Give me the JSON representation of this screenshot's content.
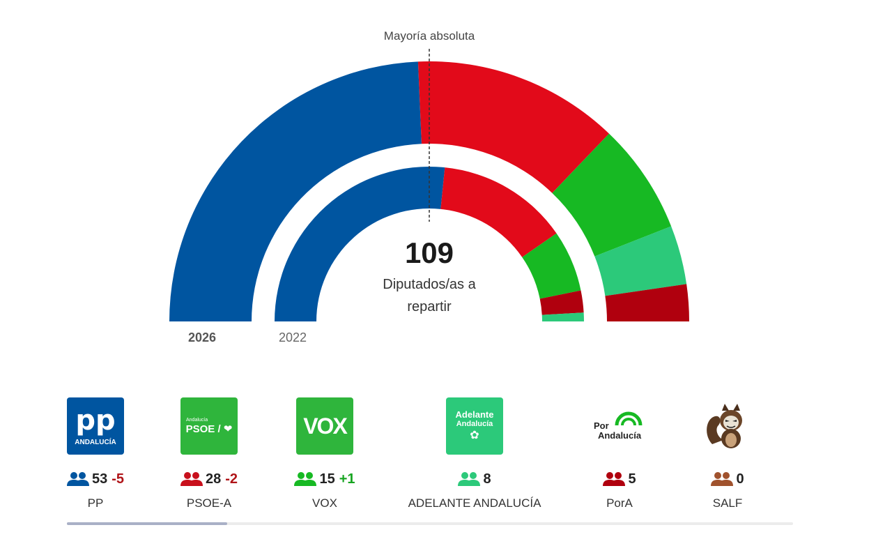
{
  "chart_data": {
    "type": "hemicycle",
    "title": "",
    "total_seats": 109,
    "total_seats_label": "109",
    "total_caption": "Diputados/as a repartir",
    "majority_label": "Mayoría absoluta",
    "majority_seats": 55,
    "rings": [
      {
        "year": "2026",
        "seats": [
          {
            "party": "PP",
            "value": 53,
            "color": "#0055a0"
          },
          {
            "party": "PSOE-A",
            "value": 28,
            "color": "#e20a1a"
          },
          {
            "party": "VOX",
            "value": 15,
            "color": "#17b923"
          },
          {
            "party": "ADELANTE ANDALUCÍA",
            "value": 8,
            "color": "#2cc97a"
          },
          {
            "party": "PorA",
            "value": 5,
            "color": "#b0000e"
          }
        ]
      },
      {
        "year": "2022",
        "seats": [
          {
            "party": "PP",
            "value": 58,
            "color": "#0055a0"
          },
          {
            "party": "PSOE-A",
            "value": 30,
            "color": "#e20a1a"
          },
          {
            "party": "VOX",
            "value": 14,
            "color": "#17b923"
          },
          {
            "party": "PorA",
            "value": 5,
            "color": "#b0000e"
          },
          {
            "party": "ADELANTE ANDALUCÍA",
            "value": 2,
            "color": "#2cc97a"
          }
        ]
      }
    ]
  },
  "parties": [
    {
      "name": "PP",
      "seats": "53",
      "diff": "-5",
      "diff_color": "#b01418",
      "icon_color": "#0055a0",
      "logo_text": "pp",
      "logo_sub": "ANDALUCÍA",
      "logo_bg": "#0055a0"
    },
    {
      "name": "PSOE-A",
      "seats": "28",
      "diff": "-2",
      "diff_color": "#b01418",
      "icon_color": "#c8101c",
      "logo_text": "PSOE / ❤",
      "logo_sub": "Andalucía",
      "logo_bg": "#2fb53c"
    },
    {
      "name": "VOX",
      "seats": "15",
      "diff": "+1",
      "diff_color": "#17a521",
      "icon_color": "#17b923",
      "logo_text": "VOX",
      "logo_sub": "",
      "logo_bg": "#2fb53c"
    },
    {
      "name": "ADELANTE ANDALUCÍA",
      "seats": "8",
      "diff": "",
      "diff_color": "#17a521",
      "icon_color": "#2cc97a",
      "logo_text": "Adelante",
      "logo_sub": "Andalucía",
      "logo_bg": "#2cc97a"
    },
    {
      "name": "PorA",
      "seats": "5",
      "diff": "",
      "diff_color": "#17a521",
      "icon_color": "#b0000e",
      "logo_text": "Por",
      "logo_sub": "Andalucía",
      "logo_bg": "#ffffff"
    },
    {
      "name": "SALF",
      "seats": "0",
      "diff": "",
      "diff_color": "#17a521",
      "icon_color": "#a0522d",
      "logo_text": "",
      "logo_sub": "",
      "logo_bg": "#ffffff"
    }
  ]
}
